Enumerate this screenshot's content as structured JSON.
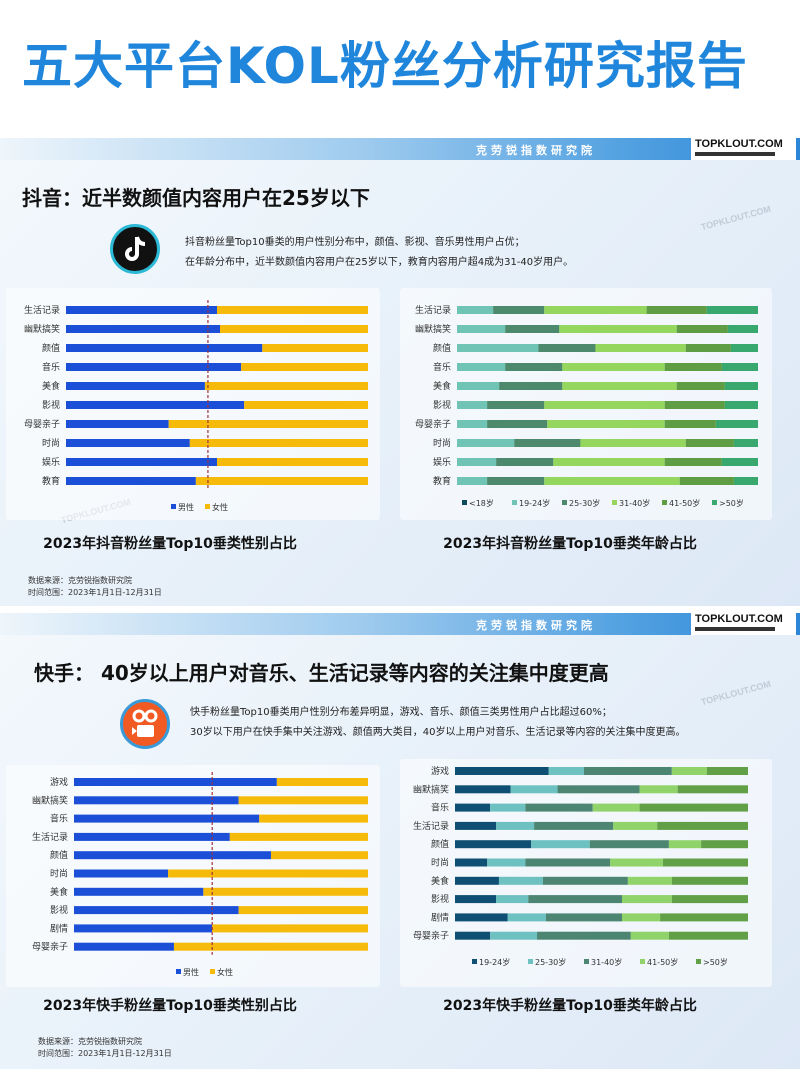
{
  "title": "五大平台KOL粉丝分析研究报告",
  "watermark": "TOPKLOUT.COM",
  "sections": [
    {
      "band_label": "克劳锐指数研究院",
      "brand": "TOPKLOUT.COM",
      "heading": "抖音：近半数颜值内容用户在25岁以下",
      "logo_icon": "douyin-logo-icon",
      "desc": [
        "抖音粉丝量Top10垂类的用户性别分布中，颜值、影视、音乐男性用户占优；",
        "在年龄分布中，近半数颜值内容用户在25岁以下，教育内容用户超4成为31-40岁用户。"
      ],
      "source": "数据来源：克劳锐指数研究院",
      "period": "时间范围：2023年1月1日-12月31日"
    },
    {
      "band_label": "克劳锐指数研究院",
      "brand": "TOPKLOUT.COM",
      "heading": "快手： 40岁以上用户对音乐、生活记录等内容的关注集中度更高",
      "logo_icon": "kuaishou-logo-icon",
      "desc": [
        "快手粉丝量Top10垂类用户性别分布差异明显，游戏、音乐、颜值三类男性用户占比超过60%；",
        "30岁以下用户在快手集中关注游戏、颜值两大类目，40岁以上用户对音乐、生活记录等内容的关注集中度更高。"
      ],
      "source": "数据来源：克劳锐指数研究院",
      "period": "时间范围：2023年1月1日-12月31日"
    }
  ],
  "chart_data": [
    {
      "type": "bar",
      "stacked": true,
      "orientation": "horizontal",
      "title": "2023年抖音粉丝量Top10垂类性别占比",
      "unit": "%",
      "xlim": [
        0,
        100
      ],
      "reference_line": 47,
      "legend_position": "bottom",
      "categories": [
        "生活记录",
        "幽默搞笑",
        "颜值",
        "音乐",
        "美食",
        "影视",
        "母婴亲子",
        "时尚",
        "娱乐",
        "教育"
      ],
      "series": [
        {
          "name": "男性",
          "color": "#1b4fd8",
          "values": [
            50,
            51,
            65,
            58,
            46,
            59,
            34,
            41,
            50,
            43
          ]
        },
        {
          "name": "女性",
          "color": "#f6bb0a",
          "values": [
            50,
            49,
            35,
            42,
            54,
            41,
            66,
            59,
            50,
            57
          ]
        }
      ]
    },
    {
      "type": "bar",
      "stacked": true,
      "orientation": "horizontal",
      "title": "2023年抖音粉丝量Top10垂类年龄占比",
      "unit": "%",
      "xlim": [
        0,
        100
      ],
      "legend_position": "bottom",
      "categories": [
        "生活记录",
        "幽默搞笑",
        "颜值",
        "音乐",
        "美食",
        "影视",
        "母婴亲子",
        "时尚",
        "娱乐",
        "教育"
      ],
      "series": [
        {
          "name": "<18岁",
          "color": "#0d4b5c",
          "values": [
            0,
            0,
            0,
            0,
            0,
            0,
            0,
            0,
            0,
            0
          ]
        },
        {
          "name": "19-24岁",
          "color": "#6fc4b6",
          "values": [
            12,
            16,
            27,
            16,
            14,
            10,
            10,
            19,
            13,
            10
          ]
        },
        {
          "name": "25-30岁",
          "color": "#4d8a6d",
          "values": [
            17,
            18,
            19,
            19,
            21,
            19,
            20,
            22,
            19,
            19
          ]
        },
        {
          "name": "31-40岁",
          "color": "#95d65f",
          "values": [
            34,
            39,
            30,
            34,
            38,
            40,
            39,
            35,
            37,
            45
          ]
        },
        {
          "name": "41-50岁",
          "color": "#5f9d44",
          "values": [
            20,
            17,
            15,
            19,
            16,
            20,
            17,
            16,
            19,
            18
          ]
        },
        {
          "name": ">50岁",
          "color": "#38a86f",
          "values": [
            17,
            10,
            9,
            12,
            11,
            11,
            14,
            8,
            12,
            8
          ]
        }
      ]
    },
    {
      "type": "bar",
      "stacked": true,
      "orientation": "horizontal",
      "title": "2023年快手粉丝量Top10垂类性别占比",
      "unit": "%",
      "xlim": [
        0,
        100
      ],
      "reference_line": 47,
      "legend_position": "bottom",
      "categories": [
        "游戏",
        "幽默搞笑",
        "音乐",
        "生活记录",
        "颜值",
        "时尚",
        "美食",
        "影视",
        "剧情",
        "母婴亲子"
      ],
      "series": [
        {
          "name": "男性",
          "color": "#1b4fd8",
          "values": [
            69,
            56,
            63,
            53,
            67,
            32,
            44,
            56,
            47,
            34
          ]
        },
        {
          "name": "女性",
          "color": "#f6bb0a",
          "values": [
            31,
            44,
            37,
            47,
            33,
            68,
            56,
            44,
            53,
            66
          ]
        }
      ]
    },
    {
      "type": "bar",
      "stacked": true,
      "orientation": "horizontal",
      "title": "2023年快手粉丝量Top10垂类年龄占比",
      "unit": "%",
      "xlim": [
        0,
        100
      ],
      "legend_position": "bottom",
      "categories": [
        "游戏",
        "幽默搞笑",
        "音乐",
        "生活记录",
        "颜值",
        "时尚",
        "美食",
        "影视",
        "剧情",
        "母婴亲子"
      ],
      "series": [
        {
          "name": "19-24岁",
          "color": "#0f4f73",
          "values": [
            32,
            19,
            12,
            14,
            26,
            11,
            15,
            14,
            18,
            12
          ]
        },
        {
          "name": "25-30岁",
          "color": "#6dc1c0",
          "values": [
            12,
            16,
            12,
            13,
            20,
            13,
            15,
            11,
            13,
            16
          ]
        },
        {
          "name": "31-40岁",
          "color": "#4c8572",
          "values": [
            30,
            28,
            23,
            27,
            27,
            29,
            29,
            32,
            26,
            32
          ]
        },
        {
          "name": "41-50岁",
          "color": "#8fd36a",
          "values": [
            12,
            13,
            16,
            15,
            11,
            18,
            15,
            17,
            13,
            13
          ]
        },
        {
          "name": ">50岁",
          "color": "#62a048",
          "values": [
            14,
            24,
            37,
            31,
            16,
            29,
            26,
            26,
            30,
            27
          ]
        }
      ]
    }
  ]
}
